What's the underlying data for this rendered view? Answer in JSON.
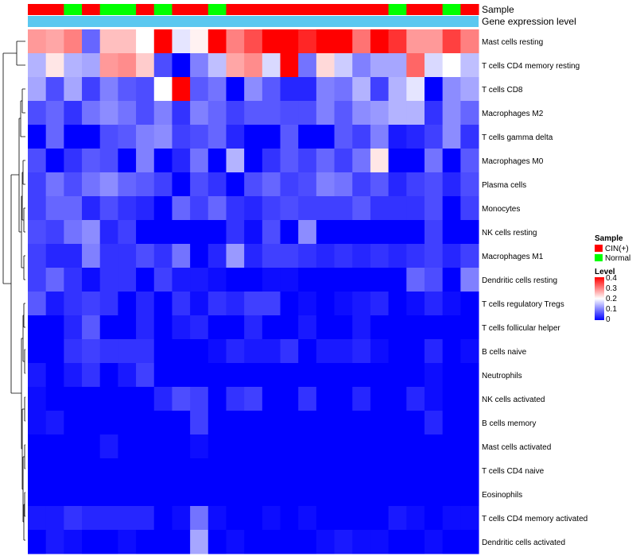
{
  "chart_data": {
    "type": "heatmap",
    "title": "",
    "annotation_tracks": [
      {
        "name": "Sample",
        "label": "Sample"
      },
      {
        "name": "Gene expression level",
        "label": "Gene expression level"
      }
    ],
    "sample_groups": [
      "CIN",
      "CIN",
      "Normal",
      "CIN",
      "Normal",
      "Normal",
      "CIN",
      "Normal",
      "CIN",
      "CIN",
      "Normal",
      "CIN",
      "CIN",
      "CIN",
      "CIN",
      "CIN",
      "CIN",
      "CIN",
      "CIN",
      "CIN",
      "Normal",
      "CIN",
      "CIN",
      "Normal",
      "CIN"
    ],
    "group_colors": {
      "CIN": "#ff0000",
      "Normal": "#00ff00"
    },
    "gene_expression_level_color": "#5bc8f0",
    "rows": [
      "Mast cells resting",
      "T cells CD4 memory resting",
      "T cells CD8",
      "Macrophages M2",
      "T cells gamma delta",
      "Macrophages M0",
      "Plasma cells",
      "Monocytes",
      "NK cells resting",
      "Macrophages M1",
      "Dendritic cells resting",
      "T cells regulatory  Tregs",
      "T cells follicular helper",
      "B cells naive",
      "Neutrophils",
      "NK cells activated",
      "B cells memory",
      "Mast cells activated",
      "T cells CD4 naive",
      "Eosinophils",
      "T cells CD4 memory activated",
      "Dendritic cells activated"
    ],
    "values": [
      [
        0.28,
        0.27,
        0.3,
        0.08,
        0.25,
        0.25,
        0.2,
        0.4,
        0.18,
        0.21,
        0.4,
        0.3,
        0.34,
        0.4,
        0.4,
        0.37,
        0.4,
        0.4,
        0.31,
        0.4,
        0.36,
        0.28,
        0.28,
        0.35,
        0.3
      ],
      [
        0.14,
        0.22,
        0.14,
        0.13,
        0.28,
        0.29,
        0.24,
        0.06,
        0.0,
        0.1,
        0.15,
        0.27,
        0.29,
        0.17,
        0.4,
        0.09,
        0.23,
        0.16,
        0.1,
        0.13,
        0.13,
        0.32,
        0.17,
        0.2,
        0.15
      ],
      [
        0.13,
        0.06,
        0.13,
        0.05,
        0.1,
        0.07,
        0.06,
        0.2,
        0.4,
        0.07,
        0.09,
        0.0,
        0.11,
        0.07,
        0.03,
        0.03,
        0.1,
        0.09,
        0.14,
        0.05,
        0.14,
        0.18,
        0.0,
        0.11,
        0.13
      ],
      [
        0.06,
        0.08,
        0.04,
        0.09,
        0.11,
        0.09,
        0.06,
        0.1,
        0.04,
        0.1,
        0.08,
        0.05,
        0.07,
        0.07,
        0.06,
        0.06,
        0.1,
        0.07,
        0.11,
        0.12,
        0.14,
        0.14,
        0.04,
        0.11,
        0.08
      ],
      [
        0.0,
        0.08,
        0.0,
        0.0,
        0.06,
        0.07,
        0.1,
        0.11,
        0.05,
        0.06,
        0.08,
        0.03,
        0.0,
        0.0,
        0.07,
        0.0,
        0.0,
        0.07,
        0.05,
        0.1,
        0.02,
        0.03,
        0.05,
        0.11,
        0.04
      ],
      [
        0.06,
        0.0,
        0.04,
        0.07,
        0.06,
        0.0,
        0.1,
        0.0,
        0.03,
        0.09,
        0.0,
        0.14,
        0.0,
        0.04,
        0.07,
        0.05,
        0.08,
        0.05,
        0.09,
        0.22,
        0.0,
        0.0,
        0.09,
        0.0,
        0.07
      ],
      [
        0.05,
        0.09,
        0.06,
        0.09,
        0.11,
        0.08,
        0.07,
        0.05,
        0.0,
        0.06,
        0.04,
        0.0,
        0.06,
        0.08,
        0.05,
        0.06,
        0.1,
        0.09,
        0.05,
        0.07,
        0.03,
        0.05,
        0.06,
        0.03,
        0.06
      ],
      [
        0.05,
        0.08,
        0.08,
        0.03,
        0.06,
        0.04,
        0.03,
        0.0,
        0.08,
        0.05,
        0.08,
        0.04,
        0.03,
        0.05,
        0.06,
        0.05,
        0.05,
        0.05,
        0.07,
        0.04,
        0.04,
        0.04,
        0.06,
        0.0,
        0.05
      ],
      [
        0.06,
        0.05,
        0.09,
        0.11,
        0.03,
        0.05,
        0.0,
        0.0,
        0.0,
        0.0,
        0.0,
        0.04,
        0.01,
        0.06,
        0.0,
        0.11,
        0.0,
        0.0,
        0.0,
        0.0,
        0.0,
        0.0,
        0.05,
        0.0,
        0.0
      ],
      [
        0.05,
        0.03,
        0.03,
        0.1,
        0.04,
        0.04,
        0.06,
        0.04,
        0.09,
        0.0,
        0.03,
        0.12,
        0.03,
        0.05,
        0.05,
        0.04,
        0.03,
        0.04,
        0.03,
        0.04,
        0.03,
        0.04,
        0.05,
        0.03,
        0.05
      ],
      [
        0.05,
        0.08,
        0.04,
        0.01,
        0.04,
        0.04,
        0.0,
        0.05,
        0.02,
        0.02,
        0.01,
        0.0,
        0.0,
        0.01,
        0.01,
        0.0,
        0.0,
        0.0,
        0.0,
        0.0,
        0.0,
        0.08,
        0.06,
        0.0,
        0.1
      ],
      [
        0.07,
        0.02,
        0.04,
        0.05,
        0.04,
        0.0,
        0.03,
        0.0,
        0.04,
        0.01,
        0.04,
        0.03,
        0.05,
        0.05,
        0.0,
        0.01,
        0.0,
        0.01,
        0.02,
        0.03,
        0.0,
        0.01,
        0.03,
        0.01,
        0.0
      ],
      [
        0.0,
        0.0,
        0.03,
        0.07,
        0.0,
        0.0,
        0.03,
        0.0,
        0.02,
        0.03,
        0.0,
        0.0,
        0.03,
        0.0,
        0.0,
        0.02,
        0.0,
        0.0,
        0.02,
        0.0,
        0.0,
        0.0,
        0.0,
        0.0,
        0.0
      ],
      [
        0.0,
        0.0,
        0.04,
        0.05,
        0.04,
        0.04,
        0.04,
        0.0,
        0.0,
        0.0,
        0.01,
        0.03,
        0.02,
        0.02,
        0.04,
        0.0,
        0.02,
        0.02,
        0.03,
        0.01,
        0.0,
        0.0,
        0.03,
        0.0,
        0.01
      ],
      [
        0.02,
        0.0,
        0.02,
        0.04,
        0.0,
        0.02,
        0.05,
        0.0,
        0.0,
        0.0,
        0.0,
        0.0,
        0.0,
        0.0,
        0.0,
        0.0,
        0.0,
        0.0,
        0.0,
        0.0,
        0.0,
        0.0,
        0.01,
        0.0,
        0.0
      ],
      [
        0.01,
        0.0,
        0.0,
        0.0,
        0.0,
        0.0,
        0.0,
        0.03,
        0.06,
        0.05,
        0.0,
        0.04,
        0.05,
        0.0,
        0.0,
        0.04,
        0.0,
        0.0,
        0.03,
        0.0,
        0.0,
        0.03,
        0.01,
        0.0,
        0.0
      ],
      [
        0.01,
        0.02,
        0.0,
        0.0,
        0.0,
        0.0,
        0.0,
        0.0,
        0.0,
        0.05,
        0.0,
        0.0,
        0.0,
        0.0,
        0.0,
        0.0,
        0.0,
        0.0,
        0.0,
        0.0,
        0.0,
        0.0,
        0.03,
        0.0,
        0.0
      ],
      [
        0.0,
        0.0,
        0.0,
        0.0,
        0.02,
        0.0,
        0.0,
        0.0,
        0.0,
        0.01,
        0.0,
        0.0,
        0.0,
        0.0,
        0.0,
        0.0,
        0.0,
        0.0,
        0.0,
        0.0,
        0.0,
        0.0,
        0.0,
        0.0,
        0.0
      ],
      [
        0.0,
        0.0,
        0.0,
        0.0,
        0.0,
        0.0,
        0.0,
        0.0,
        0.0,
        0.0,
        0.0,
        0.0,
        0.0,
        0.0,
        0.0,
        0.0,
        0.0,
        0.0,
        0.0,
        0.0,
        0.0,
        0.0,
        0.0,
        0.0,
        0.0
      ],
      [
        0.0,
        0.0,
        0.0,
        0.0,
        0.0,
        0.0,
        0.0,
        0.0,
        0.0,
        0.0,
        0.0,
        0.0,
        0.0,
        0.0,
        0.0,
        0.0,
        0.0,
        0.0,
        0.0,
        0.0,
        0.0,
        0.0,
        0.0,
        0.0,
        0.0
      ],
      [
        0.02,
        0.02,
        0.04,
        0.03,
        0.03,
        0.03,
        0.03,
        0.0,
        0.01,
        0.09,
        0.01,
        0.0,
        0.0,
        0.01,
        0.0,
        0.01,
        0.0,
        0.0,
        0.0,
        0.0,
        0.02,
        0.01,
        0.0,
        0.01,
        0.01
      ],
      [
        0.0,
        0.02,
        0.01,
        0.0,
        0.0,
        0.01,
        0.0,
        0.0,
        0.0,
        0.13,
        0.0,
        0.01,
        0.0,
        0.0,
        0.0,
        0.0,
        0.01,
        0.02,
        0.01,
        0.01,
        0.0,
        0.0,
        0.01,
        0.0,
        0.0
      ]
    ],
    "color_scale": {
      "min": 0,
      "max": 0.4,
      "low": "#0000ff",
      "mid": "#ffffff",
      "high": "#ff0000"
    },
    "legend": {
      "position": "right",
      "sample": {
        "title": "Sample",
        "entries": [
          {
            "label": "CIN(+)",
            "color": "#ff0000"
          },
          {
            "label": "Normal",
            "color": "#00ff00"
          }
        ]
      },
      "level": {
        "title": "Level",
        "ticks": [
          "0.4",
          "0.3",
          "0.2",
          "0.1",
          "0"
        ]
      }
    },
    "dendrogram": "left"
  }
}
